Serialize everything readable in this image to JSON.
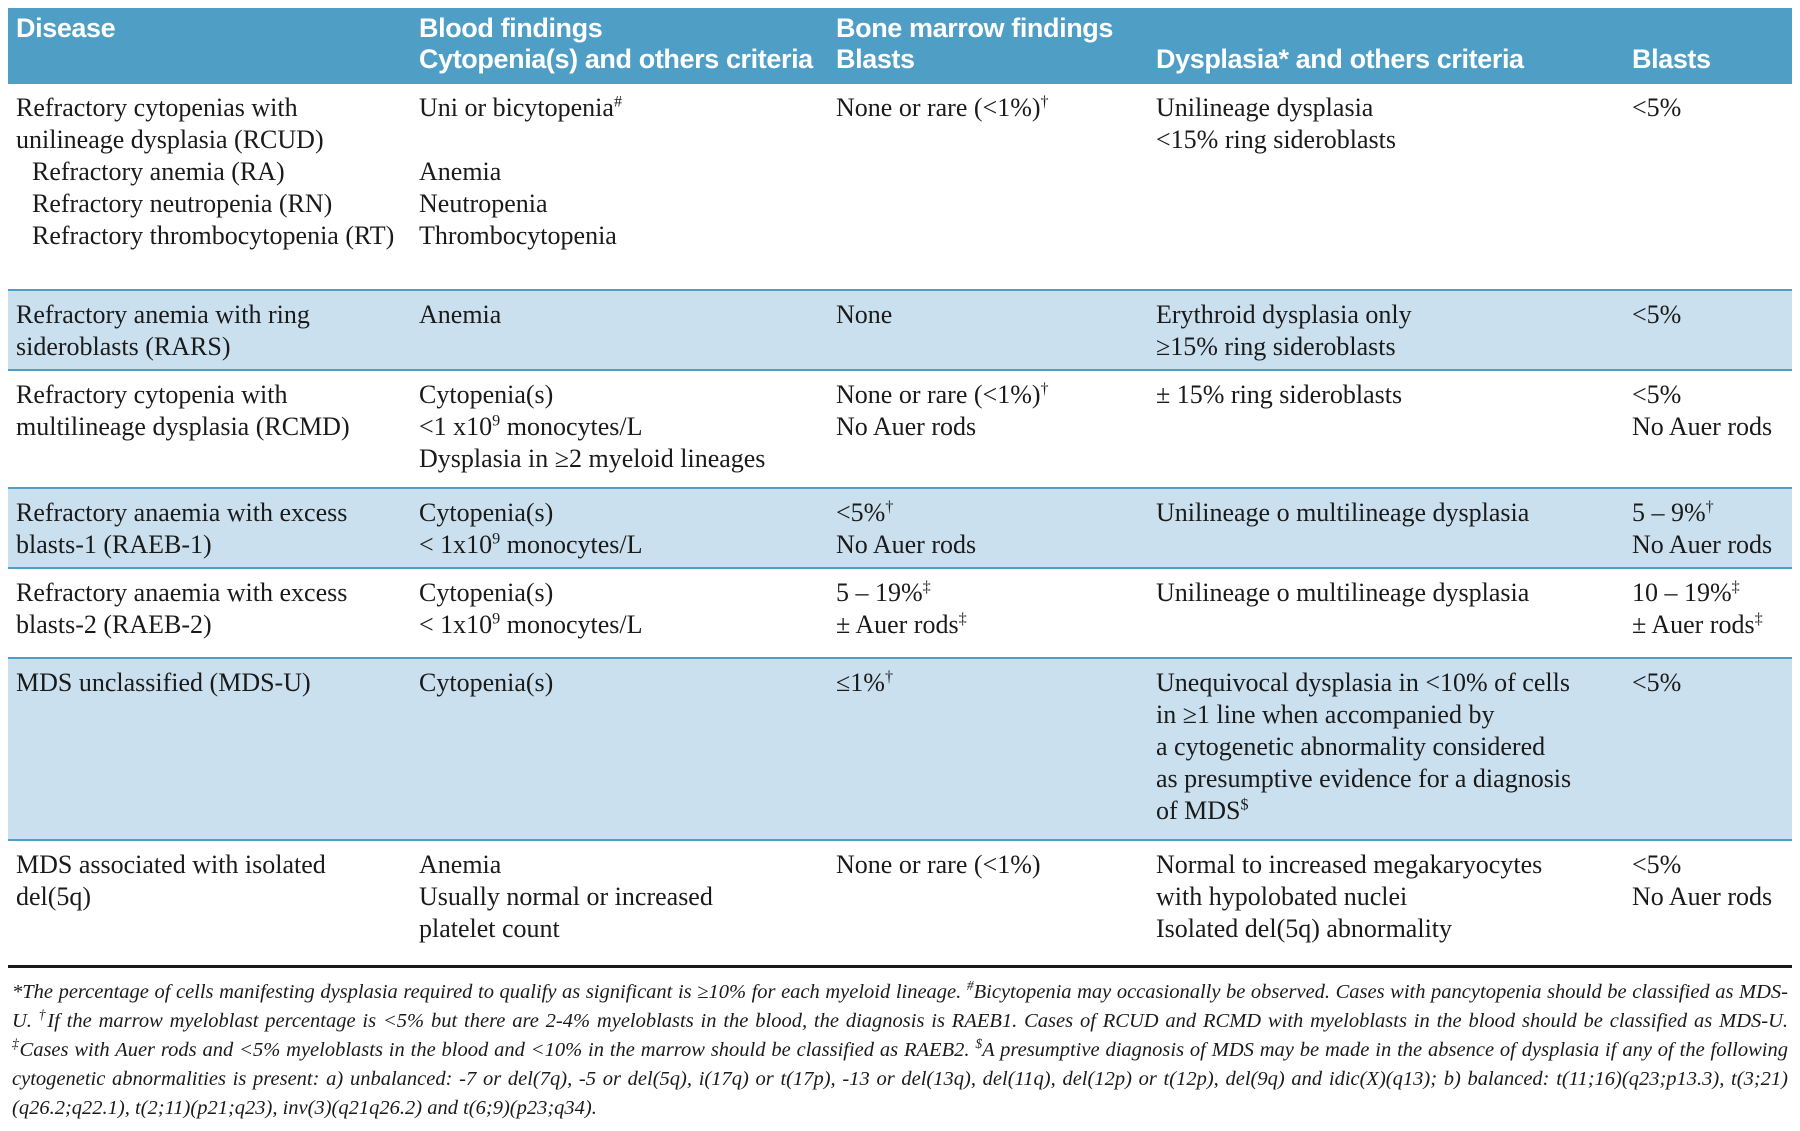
{
  "colors": {
    "header_bg": "#4f9ec6",
    "header_text": "#ffffff",
    "row_alt_bg": "#cbe0ee",
    "row_divider": "#4f9ec6",
    "footnote_rule": "#1a1a1a",
    "body_text": "#1a1a1a"
  },
  "header": {
    "cols": [
      {
        "line1": "Disease",
        "line2": ""
      },
      {
        "line1": "Blood findings",
        "line2": "Cytopenia(s) and others criteria"
      },
      {
        "line1": "Bone marrow findings",
        "line2": "Blasts"
      },
      {
        "line1": "",
        "line2": "Dysplasia* and others criteria"
      },
      {
        "line1": "",
        "line2": "Blasts"
      }
    ]
  },
  "rows": [
    {
      "disease_key": "RCUD",
      "cells": [
        {
          "lines": [
            {
              "pre": "Refractory cytopenias with"
            },
            {
              "pre": "unilineage dysplasia (RCUD)"
            },
            {
              "pre": "Refractory anemia (RA)",
              "indent": true
            },
            {
              "pre": "Refractory neutropenia (RN)",
              "indent": true
            },
            {
              "pre": "Refractory thrombocytopenia (RT)",
              "indent": true
            }
          ]
        },
        {
          "lines": [
            {
              "pre": "Uni or bicytopenia",
              "sup": "#"
            },
            {
              "blank": true
            },
            {
              "pre": "Anemia"
            },
            {
              "pre": "Neutropenia"
            },
            {
              "pre": "Thrombocytopenia"
            }
          ]
        },
        {
          "lines": [
            {
              "pre": "None or rare (<1%)",
              "sup": "†"
            }
          ]
        },
        {
          "lines": [
            {
              "pre": "Unilineage dysplasia"
            },
            {
              "pre": "<15% ring sideroblasts"
            }
          ]
        },
        {
          "lines": [
            {
              "pre": "<5%"
            }
          ]
        }
      ]
    },
    {
      "disease_key": "RARS",
      "cells": [
        {
          "lines": [
            {
              "pre": "Refractory anemia with ring"
            },
            {
              "pre": "sideroblasts (RARS)"
            }
          ]
        },
        {
          "lines": [
            {
              "pre": "Anemia"
            }
          ]
        },
        {
          "lines": [
            {
              "pre": "None"
            }
          ]
        },
        {
          "lines": [
            {
              "pre": "Erythroid dysplasia only"
            },
            {
              "pre": "≥15% ring sideroblasts"
            }
          ]
        },
        {
          "lines": [
            {
              "pre": "<5%"
            }
          ]
        }
      ]
    },
    {
      "disease_key": "RCMD",
      "cells": [
        {
          "lines": [
            {
              "pre": "Refractory cytopenia with"
            },
            {
              "pre": "multilineage dysplasia (RCMD)"
            }
          ]
        },
        {
          "lines": [
            {
              "pre": "Cytopenia(s)"
            },
            {
              "pre": "<1 x10",
              "sup": "9",
              "post": " monocytes/L"
            },
            {
              "pre": "Dysplasia in ≥2 myeloid lineages"
            }
          ]
        },
        {
          "lines": [
            {
              "pre": "None or rare (<1%)",
              "sup": "†"
            },
            {
              "pre": "No Auer rods"
            }
          ]
        },
        {
          "lines": [
            {
              "pre": "± 15% ring sideroblasts"
            }
          ]
        },
        {
          "lines": [
            {
              "pre": "<5%"
            },
            {
              "pre": "No Auer rods"
            }
          ]
        }
      ]
    },
    {
      "disease_key": "RAEB-1",
      "cells": [
        {
          "lines": [
            {
              "pre": "Refractory anaemia with excess"
            },
            {
              "pre": "blasts-1 (RAEB-1)"
            }
          ]
        },
        {
          "lines": [
            {
              "pre": "Cytopenia(s)"
            },
            {
              "pre": "< 1x10",
              "sup": "9",
              "post": " monocytes/L"
            }
          ]
        },
        {
          "lines": [
            {
              "pre": "<5%",
              "sup": "†"
            },
            {
              "pre": "No Auer rods"
            }
          ]
        },
        {
          "lines": [
            {
              "pre": "Unilineage o multilineage dysplasia"
            }
          ]
        },
        {
          "lines": [
            {
              "pre": "5 – 9%",
              "sup": "†"
            },
            {
              "pre": "No Auer rods"
            }
          ]
        }
      ]
    },
    {
      "disease_key": "RAEB-2",
      "cells": [
        {
          "lines": [
            {
              "pre": "Refractory anaemia with excess"
            },
            {
              "pre": "blasts-2 (RAEB-2)"
            }
          ]
        },
        {
          "lines": [
            {
              "pre": "Cytopenia(s)"
            },
            {
              "pre": "< 1x10",
              "sup": "9",
              "post": " monocytes/L"
            }
          ]
        },
        {
          "lines": [
            {
              "pre": "5 – 19%",
              "sup": "‡"
            },
            {
              "pre": "± Auer rods",
              "sup": "‡"
            }
          ]
        },
        {
          "lines": [
            {
              "pre": "Unilineage o multilineage dysplasia"
            }
          ]
        },
        {
          "lines": [
            {
              "pre": "10 – 19%",
              "sup": "‡"
            },
            {
              "pre": "± Auer rods",
              "sup": "‡"
            }
          ]
        }
      ]
    },
    {
      "disease_key": "MDS-U",
      "cells": [
        {
          "lines": [
            {
              "pre": "MDS unclassified (MDS-U)"
            }
          ]
        },
        {
          "lines": [
            {
              "pre": "Cytopenia(s)"
            }
          ]
        },
        {
          "lines": [
            {
              "pre": "≤1%",
              "sup": "†"
            }
          ]
        },
        {
          "lines": [
            {
              "pre": "Unequivocal dysplasia in <10% of cells"
            },
            {
              "pre": "in ≥1 line when accompanied by"
            },
            {
              "pre": "a cytogenetic abnormality considered"
            },
            {
              "pre": "as presumptive evidence for a diagnosis"
            },
            {
              "pre": "of MDS",
              "sup": "$"
            }
          ]
        },
        {
          "lines": [
            {
              "pre": "<5%"
            }
          ]
        }
      ]
    },
    {
      "disease_key": "del(5q)",
      "cells": [
        {
          "lines": [
            {
              "pre": "MDS associated with isolated"
            },
            {
              "pre": "del(5q)"
            }
          ]
        },
        {
          "lines": [
            {
              "pre": "Anemia"
            },
            {
              "pre": "Usually normal or increased"
            },
            {
              "pre": "platelet count"
            }
          ]
        },
        {
          "lines": [
            {
              "pre": "None or rare (<1%)"
            }
          ]
        },
        {
          "lines": [
            {
              "pre": "Normal to increased megakaryocytes"
            },
            {
              "pre": "with hypolobated nuclei"
            },
            {
              "pre": "Isolated del(5q) abnormality"
            }
          ]
        },
        {
          "lines": [
            {
              "pre": "<5%"
            },
            {
              "pre": "No Auer rods"
            }
          ]
        }
      ]
    }
  ],
  "footnote": {
    "parts": [
      {
        "text": "*The percentage of cells manifesting dysplasia required to qualify as significant is ≥10% for each myeloid lineage."
      },
      {
        "sup": "#",
        "text": "Bicytopenia may occasionally be observed. Cases with pancytopenia should be classified as MDS-U."
      },
      {
        "sup": "†",
        "text": "If the marrow myeloblast percentage is <5% but there are 2-4% myeloblasts in the blood, the diagnosis is RAEB1. Cases of RCUD and RCMD with myeloblasts in the blood should be classified as MDS-U."
      },
      {
        "sup": "‡",
        "text": "Cases with Auer rods and <5% myeloblasts in the blood and <10% in the marrow should be classified as RAEB2. "
      },
      {
        "sup": "$",
        "text": "A presumptive diagnosis of MDS may be made in the absence of dysplasia if any of the following cytogenetic abnormalities is present: a) unbalanced: -7 or del(7q), -5 or del(5q), i(17q) or t(17p), -13 or del(13q), del(11q), del(12p) or t(12p), del(9q) and idic(X)(q13); b) balanced: t(11;16)(q23;p13.3), t(3;21)(q26.2;q22.1), t(2;11)(p21;q23), inv(3)(q21q26.2) and t(6;9)(p23;q34)."
      }
    ]
  }
}
